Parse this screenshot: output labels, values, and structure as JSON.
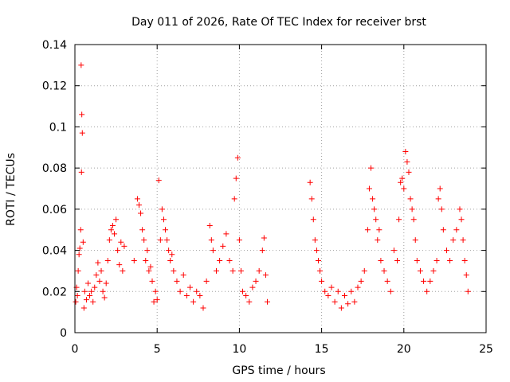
{
  "chart_data": {
    "type": "scatter",
    "title": "Day 011 of 2026, Rate Of TEC Index for receiver brst",
    "xlabel": "GPS time / hours",
    "ylabel": "ROTI / TECUs",
    "xlim": [
      0,
      25
    ],
    "ylim": [
      0,
      0.14
    ],
    "x_ticks": [
      0,
      5,
      10,
      15,
      20,
      25
    ],
    "y_ticks": [
      0,
      0.02,
      0.04,
      0.06,
      0.08,
      0.1,
      0.12,
      0.14
    ],
    "x_tick_labels": [
      "0",
      "5",
      "10",
      "15",
      "20",
      "25"
    ],
    "y_tick_labels": [
      "0",
      "0.02",
      "0.04",
      "0.06",
      "0.08",
      "0.1",
      "0.12",
      "0.14"
    ],
    "grid": true,
    "marker": "plus",
    "marker_color": "#ff0000",
    "data_gap_hours": [
      11.9,
      14.2
    ],
    "points": [
      [
        0.05,
        0.015
      ],
      [
        0.1,
        0.022
      ],
      [
        0.15,
        0.018
      ],
      [
        0.2,
        0.03
      ],
      [
        0.25,
        0.038
      ],
      [
        0.3,
        0.041
      ],
      [
        0.35,
        0.05
      ],
      [
        0.38,
        0.13
      ],
      [
        0.42,
        0.106
      ],
      [
        0.45,
        0.097
      ],
      [
        0.4,
        0.078
      ],
      [
        0.5,
        0.044
      ],
      [
        0.55,
        0.012
      ],
      [
        0.6,
        0.02
      ],
      [
        0.7,
        0.016
      ],
      [
        0.8,
        0.024
      ],
      [
        0.9,
        0.018
      ],
      [
        1.0,
        0.02
      ],
      [
        1.1,
        0.015
      ],
      [
        1.2,
        0.022
      ],
      [
        1.3,
        0.028
      ],
      [
        1.4,
        0.034
      ],
      [
        1.5,
        0.025
      ],
      [
        1.6,
        0.03
      ],
      [
        1.7,
        0.02
      ],
      [
        1.8,
        0.017
      ],
      [
        1.9,
        0.024
      ],
      [
        2.0,
        0.035
      ],
      [
        2.1,
        0.045
      ],
      [
        2.2,
        0.05
      ],
      [
        2.3,
        0.052
      ],
      [
        2.4,
        0.048
      ],
      [
        2.5,
        0.055
      ],
      [
        2.6,
        0.04
      ],
      [
        2.7,
        0.033
      ],
      [
        2.8,
        0.044
      ],
      [
        2.9,
        0.03
      ],
      [
        3.0,
        0.042
      ],
      [
        3.6,
        0.035
      ],
      [
        3.8,
        0.065
      ],
      [
        3.9,
        0.062
      ],
      [
        4.0,
        0.058
      ],
      [
        4.1,
        0.05
      ],
      [
        4.2,
        0.045
      ],
      [
        4.3,
        0.035
      ],
      [
        4.4,
        0.04
      ],
      [
        4.5,
        0.03
      ],
      [
        4.6,
        0.032
      ],
      [
        4.7,
        0.025
      ],
      [
        4.8,
        0.015
      ],
      [
        4.9,
        0.02
      ],
      [
        5.0,
        0.016
      ],
      [
        5.1,
        0.074
      ],
      [
        5.2,
        0.045
      ],
      [
        5.3,
        0.06
      ],
      [
        5.4,
        0.055
      ],
      [
        5.5,
        0.05
      ],
      [
        5.6,
        0.045
      ],
      [
        5.7,
        0.04
      ],
      [
        5.8,
        0.035
      ],
      [
        5.9,
        0.038
      ],
      [
        6.0,
        0.03
      ],
      [
        6.2,
        0.025
      ],
      [
        6.4,
        0.02
      ],
      [
        6.6,
        0.028
      ],
      [
        6.8,
        0.018
      ],
      [
        7.0,
        0.022
      ],
      [
        7.2,
        0.015
      ],
      [
        7.4,
        0.02
      ],
      [
        7.6,
        0.018
      ],
      [
        7.8,
        0.012
      ],
      [
        8.0,
        0.025
      ],
      [
        8.2,
        0.052
      ],
      [
        8.3,
        0.045
      ],
      [
        8.4,
        0.04
      ],
      [
        8.6,
        0.03
      ],
      [
        8.8,
        0.035
      ],
      [
        9.0,
        0.042
      ],
      [
        9.2,
        0.048
      ],
      [
        9.4,
        0.035
      ],
      [
        9.6,
        0.03
      ],
      [
        9.7,
        0.065
      ],
      [
        9.8,
        0.075
      ],
      [
        9.9,
        0.085
      ],
      [
        10.0,
        0.045
      ],
      [
        10.1,
        0.03
      ],
      [
        10.2,
        0.02
      ],
      [
        10.4,
        0.018
      ],
      [
        10.6,
        0.015
      ],
      [
        10.8,
        0.022
      ],
      [
        11.0,
        0.025
      ],
      [
        11.2,
        0.03
      ],
      [
        11.4,
        0.04
      ],
      [
        11.5,
        0.046
      ],
      [
        11.6,
        0.028
      ],
      [
        11.7,
        0.015
      ],
      [
        14.3,
        0.073
      ],
      [
        14.4,
        0.065
      ],
      [
        14.5,
        0.055
      ],
      [
        14.6,
        0.045
      ],
      [
        14.7,
        0.04
      ],
      [
        14.8,
        0.035
      ],
      [
        14.9,
        0.03
      ],
      [
        15.0,
        0.025
      ],
      [
        15.2,
        0.02
      ],
      [
        15.4,
        0.018
      ],
      [
        15.6,
        0.022
      ],
      [
        15.8,
        0.015
      ],
      [
        16.0,
        0.02
      ],
      [
        16.2,
        0.012
      ],
      [
        16.4,
        0.018
      ],
      [
        16.6,
        0.014
      ],
      [
        16.8,
        0.02
      ],
      [
        17.0,
        0.015
      ],
      [
        17.2,
        0.022
      ],
      [
        17.4,
        0.025
      ],
      [
        17.6,
        0.03
      ],
      [
        17.8,
        0.05
      ],
      [
        17.9,
        0.07
      ],
      [
        18.0,
        0.08
      ],
      [
        18.1,
        0.065
      ],
      [
        18.2,
        0.06
      ],
      [
        18.3,
        0.055
      ],
      [
        18.4,
        0.045
      ],
      [
        18.5,
        0.05
      ],
      [
        18.6,
        0.035
      ],
      [
        18.8,
        0.03
      ],
      [
        19.0,
        0.025
      ],
      [
        19.2,
        0.02
      ],
      [
        19.4,
        0.04
      ],
      [
        19.6,
        0.035
      ],
      [
        19.7,
        0.055
      ],
      [
        19.8,
        0.073
      ],
      [
        19.9,
        0.075
      ],
      [
        20.0,
        0.07
      ],
      [
        20.1,
        0.088
      ],
      [
        20.2,
        0.083
      ],
      [
        20.3,
        0.078
      ],
      [
        20.4,
        0.065
      ],
      [
        20.5,
        0.06
      ],
      [
        20.6,
        0.055
      ],
      [
        20.7,
        0.045
      ],
      [
        20.8,
        0.035
      ],
      [
        21.0,
        0.03
      ],
      [
        21.2,
        0.025
      ],
      [
        21.4,
        0.02
      ],
      [
        21.6,
        0.025
      ],
      [
        21.8,
        0.03
      ],
      [
        22.0,
        0.035
      ],
      [
        22.1,
        0.065
      ],
      [
        22.2,
        0.07
      ],
      [
        22.3,
        0.06
      ],
      [
        22.4,
        0.05
      ],
      [
        22.6,
        0.04
      ],
      [
        22.8,
        0.035
      ],
      [
        23.0,
        0.045
      ],
      [
        23.2,
        0.05
      ],
      [
        23.4,
        0.06
      ],
      [
        23.5,
        0.055
      ],
      [
        23.6,
        0.045
      ],
      [
        23.7,
        0.035
      ],
      [
        23.8,
        0.028
      ],
      [
        23.9,
        0.02
      ]
    ]
  }
}
